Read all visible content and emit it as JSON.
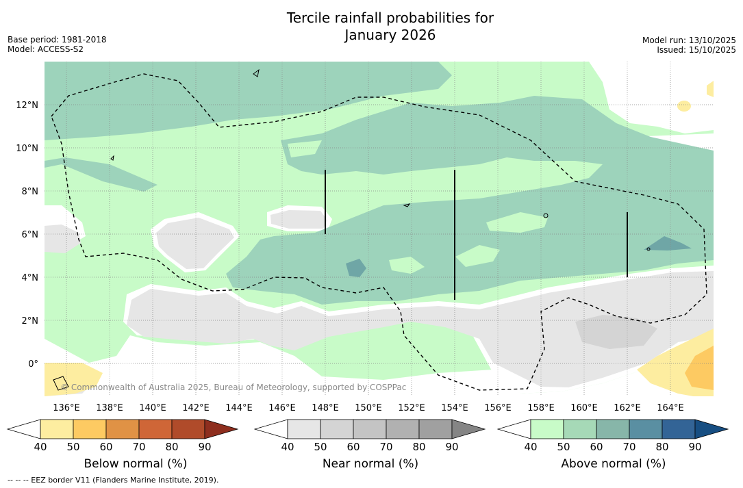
{
  "title_line1": "Tercile rainfall probabilities for",
  "title_line2": "January 2026",
  "base_period": "Base period: 1981-2018",
  "model": "Model: ACCESS-S2",
  "model_run": "Model run: 13/10/2025",
  "issued": "Issued: 15/10/2025",
  "copyright": "© Commonwealth of Australia 2025, Bureau of Meteorology, supported by COSPPac",
  "footnote": "--  --  -- EEZ border V11 (Flanders Marine Institute, 2019).",
  "lat_labels": [
    "12°N",
    "10°N",
    "8°N",
    "6°N",
    "4°N",
    "2°N",
    "0°"
  ],
  "lon_labels": [
    "136°E",
    "138°E",
    "140°E",
    "142°E",
    "144°E",
    "146°E",
    "148°E",
    "150°E",
    "152°E",
    "154°E",
    "156°E",
    "158°E",
    "160°E",
    "162°E",
    "164°E"
  ],
  "colorbars": [
    {
      "label": "Below normal (%)",
      "ticks": [
        "40",
        "50",
        "60",
        "70",
        "80",
        "90"
      ],
      "colors": [
        "#ffffff",
        "#fdeda0",
        "#fdca62",
        "#e09245",
        "#cf6637",
        "#b04b2a",
        "#8e2e1e"
      ]
    },
    {
      "label": "Near normal (%)",
      "ticks": [
        "40",
        "50",
        "60",
        "70",
        "80",
        "90"
      ],
      "colors": [
        "#ffffff",
        "#e6e6e6",
        "#d4d4d4",
        "#c4c4c4",
        "#b1b1b1",
        "#a0a0a0",
        "#858585"
      ]
    },
    {
      "label": "Above normal (%)",
      "ticks": [
        "40",
        "50",
        "60",
        "70",
        "80",
        "90"
      ],
      "colors": [
        "#ffffff",
        "#c8fbc8",
        "#a6d9b7",
        "#87b6a9",
        "#5a8fa2",
        "#336496",
        "#174e82"
      ]
    }
  ],
  "colors": {
    "above40": "#c8fbc8",
    "above50": "#9dd3bb",
    "above60": "#6fa6a6",
    "near40": "#e6e6e6",
    "near50": "#d4d4d4",
    "below40": "#fdeda0",
    "below50": "#fdca62"
  }
}
